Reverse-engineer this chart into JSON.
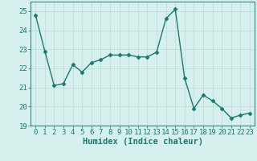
{
  "x": [
    0,
    1,
    2,
    3,
    4,
    5,
    6,
    7,
    8,
    9,
    10,
    11,
    12,
    13,
    14,
    15,
    16,
    17,
    18,
    19,
    20,
    21,
    22,
    23
  ],
  "y": [
    24.8,
    22.9,
    21.1,
    21.2,
    22.2,
    21.8,
    22.3,
    22.45,
    22.7,
    22.7,
    22.7,
    22.6,
    22.6,
    22.85,
    24.6,
    25.1,
    21.5,
    19.9,
    20.6,
    20.3,
    19.9,
    19.4,
    19.55,
    19.65
  ],
  "line_color": "#1a7a6e",
  "marker": "D",
  "marker_size": 2.5,
  "linewidth": 1.0,
  "xlabel": "Humidex (Indice chaleur)",
  "xlim": [
    -0.5,
    23.5
  ],
  "ylim": [
    19,
    25.5
  ],
  "yticks": [
    19,
    20,
    21,
    22,
    23,
    24,
    25
  ],
  "xticks": [
    0,
    1,
    2,
    3,
    4,
    5,
    6,
    7,
    8,
    9,
    10,
    11,
    12,
    13,
    14,
    15,
    16,
    17,
    18,
    19,
    20,
    21,
    22,
    23
  ],
  "bg_color": "#d6f0ee",
  "grid_color": "#c0deda",
  "tick_color": "#1a7a6e",
  "label_color": "#1a7a6e",
  "xlabel_fontsize": 7.5,
  "tick_fontsize": 6.5
}
